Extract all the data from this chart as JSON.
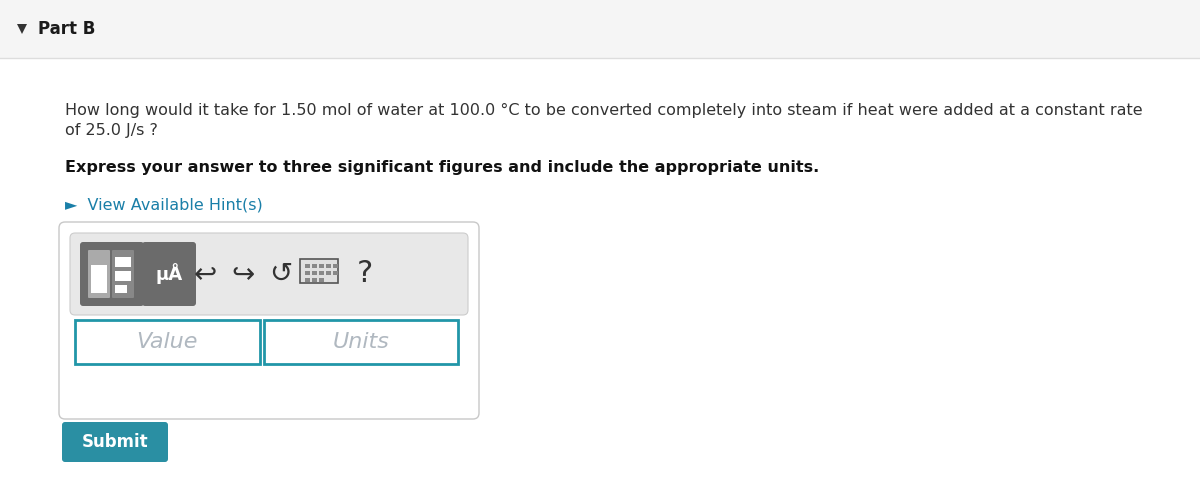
{
  "background_color": "#f5f5f5",
  "header_bg": "#f5f5f5",
  "content_bg": "#ffffff",
  "part_label": "Part B",
  "triangle_color": "#333333",
  "question_line1": "How long would it take for 1.50 mol of water at 100.0 °C to be converted completely into steam if heat were added at a constant rate",
  "question_line2": "of 25.0 J/s ?",
  "bold_text": "Express your answer to three significant figures and include the appropriate units.",
  "hint_text": "►  View Available Hint(s)",
  "hint_color": "#1a7fa8",
  "value_placeholder": "Value",
  "units_placeholder": "Units",
  "submit_text": "Submit",
  "submit_bg": "#2a8fa3",
  "submit_text_color": "#ffffff",
  "input_border_color": "#2196a8",
  "placeholder_color": "#b0b8c0",
  "toolbar_bg": "#e8e8e8",
  "toolbar_border": "#cccccc",
  "outer_box_border": "#c8c8c8",
  "outer_box_bg": "#ffffff",
  "header_divider": "#dddddd",
  "btn_dark_bg": "#6b6b6b",
  "btn_icon_light": "#dddddd",
  "btn_icon_dark": "#888888",
  "icon_color": "#333333",
  "font_size_question": 11.5,
  "font_size_bold": 11.5,
  "font_size_hint": 11.5,
  "font_size_part": 12
}
